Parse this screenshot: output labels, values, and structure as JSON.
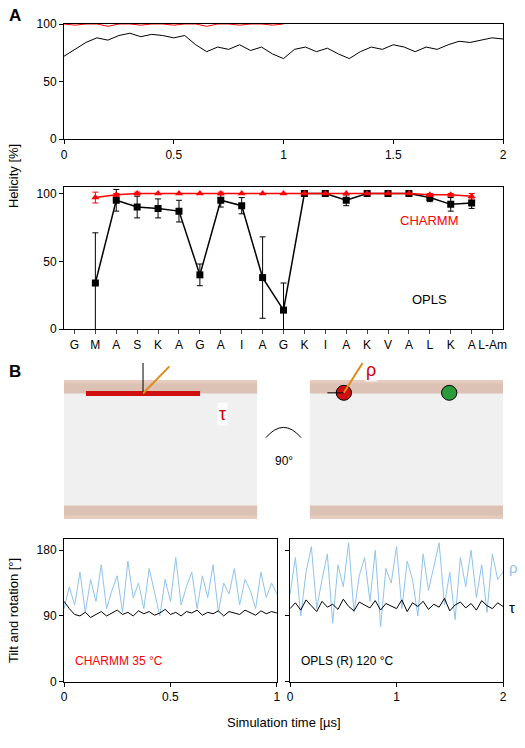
{
  "chart_data": [
    {
      "panel_label": "A",
      "type": "line",
      "y_label": "Helicity [%]",
      "xlim": [
        0,
        2
      ],
      "xticks": [
        0,
        0.5,
        1,
        1.5,
        2
      ],
      "ylim": [
        0,
        100
      ],
      "yticks": [
        0,
        50,
        100
      ],
      "grid": false,
      "series": [
        {
          "color": "#000000",
          "x": [
            0,
            0.05,
            0.1,
            0.15,
            0.2,
            0.25,
            0.3,
            0.35,
            0.4,
            0.45,
            0.5,
            0.55,
            0.6,
            0.65,
            0.7,
            0.75,
            0.8,
            0.85,
            0.9,
            0.95,
            1,
            1.05,
            1.1,
            1.15,
            1.2,
            1.25,
            1.3,
            1.35,
            1.4,
            1.45,
            1.5,
            1.55,
            1.6,
            1.65,
            1.7,
            1.75,
            1.8,
            1.85,
            1.9,
            1.95,
            2
          ],
          "values": [
            72,
            78,
            84,
            88,
            86,
            90,
            92,
            89,
            91,
            90,
            88,
            90,
            82,
            76,
            80,
            78,
            82,
            77,
            80,
            74,
            70,
            78,
            80,
            76,
            79,
            74,
            70,
            76,
            80,
            78,
            82,
            80,
            76,
            80,
            78,
            82,
            85,
            84,
            86,
            88,
            87
          ]
        },
        {
          "color": "#ff0000",
          "x": [
            0,
            0.05,
            0.1,
            0.15,
            0.2,
            0.25,
            0.3,
            0.35,
            0.4,
            0.45,
            0.5,
            0.55,
            0.6,
            0.65,
            0.7,
            0.75,
            0.8,
            0.85,
            0.9,
            0.95,
            1
          ],
          "values": [
            100,
            99,
            100,
            100,
            98,
            100,
            100,
            99,
            100,
            100,
            99,
            100,
            100,
            98,
            100,
            100,
            99,
            100,
            100,
            99,
            100
          ]
        }
      ]
    },
    {
      "type": "line",
      "categories": [
        "G",
        "M",
        "A",
        "S",
        "K",
        "A",
        "G",
        "A",
        "I",
        "A",
        "G",
        "K",
        "I",
        "A",
        "K",
        "V",
        "A",
        "L",
        "K",
        "A",
        "L-Am"
      ],
      "ylim": [
        0,
        105
      ],
      "yticks": [
        0,
        50,
        100
      ],
      "grid": false,
      "series": [
        {
          "name": "OPLS",
          "color": "#000000",
          "marker": "square",
          "values": [
            null,
            34,
            95,
            90,
            89,
            87,
            40,
            95,
            91,
            38,
            14,
            100,
            100,
            95,
            100,
            100,
            100,
            97,
            92,
            93,
            null
          ],
          "errors": [
            null,
            37,
            8,
            8,
            7,
            8,
            8,
            5,
            6,
            30,
            20,
            0,
            0,
            4,
            1,
            1,
            1,
            3,
            5,
            4,
            null
          ]
        },
        {
          "name": "CHARMM",
          "color": "#ff0000",
          "marker": "triangle-up",
          "values": [
            null,
            97,
            99,
            100,
            100,
            100,
            100,
            100,
            100,
            100,
            100,
            100,
            100,
            100,
            100,
            100,
            100,
            99,
            99,
            98,
            null
          ],
          "errors": [
            null,
            4,
            1,
            1,
            0,
            0,
            0,
            1,
            0,
            0,
            0,
            0,
            0,
            0,
            0,
            0,
            0,
            1,
            1,
            2,
            null
          ]
        }
      ]
    },
    {
      "panel_label": "B",
      "type": "line",
      "title": "CHARMM 35 °C",
      "color": "#ff0000",
      "y_label": "Tilt and rotation [°]",
      "annotations": [
        {
          "text": "τ"
        },
        {
          "text": "ρ"
        },
        {
          "text": "90°"
        }
      ],
      "xlim": [
        0,
        1
      ],
      "xticks": [
        0,
        0.5,
        1
      ],
      "ylim": [
        0,
        195
      ],
      "yticks": [
        0,
        90,
        180
      ],
      "grid": false,
      "series": [
        {
          "color": "#8fc3ea",
          "x": [
            0,
            0.025,
            0.05,
            0.075,
            0.1,
            0.125,
            0.15,
            0.175,
            0.2,
            0.225,
            0.25,
            0.275,
            0.3,
            0.325,
            0.35,
            0.375,
            0.4,
            0.425,
            0.45,
            0.475,
            0.5,
            0.525,
            0.55,
            0.575,
            0.6,
            0.625,
            0.65,
            0.675,
            0.7,
            0.725,
            0.75,
            0.775,
            0.8,
            0.825,
            0.85,
            0.875,
            0.9,
            0.925,
            0.95,
            0.975,
            1
          ],
          "values": [
            100,
            130,
            105,
            150,
            95,
            140,
            110,
            160,
            100,
            125,
            145,
            95,
            165,
            115,
            135,
            100,
            155,
            120,
            90,
            140,
            110,
            170,
            105,
            130,
            150,
            100,
            145,
            115,
            160,
            95,
            135,
            120,
            155,
            105,
            140,
            125,
            100,
            150,
            115,
            135,
            120
          ]
        },
        {
          "color": "#000000",
          "x": [
            0,
            0.025,
            0.05,
            0.075,
            0.1,
            0.125,
            0.15,
            0.175,
            0.2,
            0.225,
            0.25,
            0.275,
            0.3,
            0.325,
            0.35,
            0.375,
            0.4,
            0.425,
            0.45,
            0.475,
            0.5,
            0.525,
            0.55,
            0.575,
            0.6,
            0.625,
            0.65,
            0.675,
            0.7,
            0.725,
            0.75,
            0.775,
            0.8,
            0.825,
            0.85,
            0.875,
            0.9,
            0.925,
            0.95,
            0.975,
            1
          ],
          "values": [
            110,
            100,
            92,
            90,
            95,
            88,
            92,
            96,
            90,
            94,
            98,
            92,
            95,
            90,
            97,
            93,
            96,
            91,
            94,
            99,
            92,
            95,
            90,
            96,
            94,
            98,
            91,
            95,
            93,
            97,
            90,
            96,
            94,
            92,
            98,
            95,
            91,
            97,
            93,
            96,
            94
          ]
        }
      ]
    },
    {
      "type": "line",
      "title": "OPLS (R) 120 °C",
      "color": "#000000",
      "x_label": "Simulation time [µs]",
      "xlim": [
        0,
        2
      ],
      "xticks": [
        0,
        1,
        2
      ],
      "ylim": [
        0,
        195
      ],
      "yticks": [
        0,
        90,
        180
      ],
      "tick_labels": "x",
      "grid": false,
      "series": [
        {
          "name": "ρ",
          "color": "#8fc3ea",
          "x": [
            0,
            0.05,
            0.1,
            0.15,
            0.2,
            0.25,
            0.3,
            0.35,
            0.4,
            0.45,
            0.5,
            0.55,
            0.6,
            0.65,
            0.7,
            0.75,
            0.8,
            0.85,
            0.9,
            0.95,
            1,
            1.05,
            1.1,
            1.15,
            1.2,
            1.25,
            1.3,
            1.35,
            1.4,
            1.45,
            1.5,
            1.55,
            1.6,
            1.65,
            1.7,
            1.75,
            1.8,
            1.85,
            1.9,
            1.95,
            2
          ],
          "values": [
            120,
            170,
            90,
            150,
            185,
            100,
            140,
            175,
            80,
            160,
            130,
            190,
            95,
            145,
            170,
            110,
            180,
            75,
            155,
            135,
            185,
            100,
            165,
            140,
            90,
            175,
            125,
            160,
            190,
            105,
            150,
            85,
            170,
            130,
            180,
            115,
            160,
            95,
            175,
            140,
            150
          ]
        },
        {
          "name": "τ",
          "color": "#000000",
          "x": [
            0,
            0.05,
            0.1,
            0.15,
            0.2,
            0.25,
            0.3,
            0.35,
            0.4,
            0.45,
            0.5,
            0.55,
            0.6,
            0.65,
            0.7,
            0.75,
            0.8,
            0.85,
            0.9,
            0.95,
            1,
            1.05,
            1.1,
            1.15,
            1.2,
            1.25,
            1.3,
            1.35,
            1.4,
            1.45,
            1.5,
            1.55,
            1.6,
            1.65,
            1.7,
            1.75,
            1.8,
            1.85,
            1.9,
            1.95,
            2
          ],
          "values": [
            100,
            108,
            98,
            112,
            104,
            96,
            110,
            102,
            106,
            99,
            113,
            103,
            97,
            109,
            105,
            101,
            111,
            98,
            107,
            104,
            100,
            112,
            96,
            108,
            103,
            110,
            99,
            106,
            102,
            114,
            97,
            105,
            109,
            101,
            107,
            98,
            111,
            104,
            100,
            108,
            103
          ]
        }
      ]
    }
  ]
}
